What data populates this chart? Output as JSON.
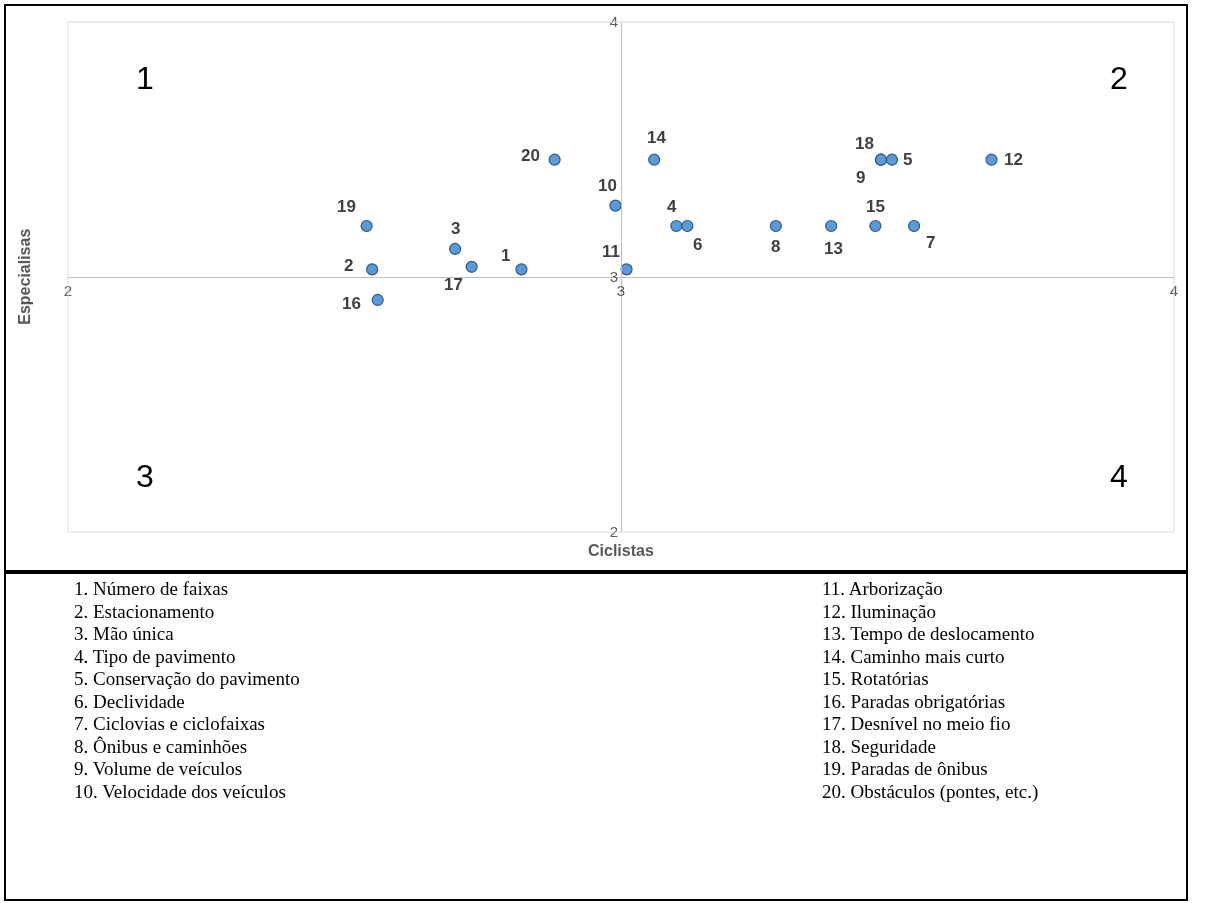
{
  "chart_data": {
    "type": "scatter",
    "xlabel": "Ciclistas",
    "ylabel": "Especialisas",
    "color": "#5b9bd5",
    "marker": "circle",
    "x": [
      2.82,
      2.55,
      2.7,
      3.1,
      3.49,
      3.12,
      3.53,
      3.28,
      3.47,
      2.99,
      3.01,
      3.67,
      3.38,
      3.06,
      3.46,
      2.56,
      2.73,
      3.47,
      2.54,
      2.88
    ],
    "values": [
      3.03,
      3.03,
      3.11,
      3.2,
      3.46,
      3.2,
      3.2,
      3.2,
      3.46,
      3.28,
      3.03,
      3.46,
      3.2,
      3.46,
      3.2,
      2.91,
      3.04,
      3.46,
      3.2,
      3.46
    ],
    "xlim": [
      2,
      4
    ],
    "ylim": [
      2,
      4
    ],
    "xticks": [
      2,
      3,
      4
    ],
    "yticks": [
      2,
      3,
      4
    ],
    "annotations": [
      "1",
      "2",
      "3",
      "4",
      {
        "text": "1",
        "x": 2.82,
        "y": 3.03
      },
      {
        "text": "2",
        "x": 2.55,
        "y": 3.03
      },
      {
        "text": "3",
        "x": 2.7,
        "y": 3.11
      },
      {
        "text": "4",
        "x": 3.1,
        "y": 3.2
      },
      {
        "text": "5",
        "x": 3.49,
        "y": 3.46
      },
      {
        "text": "6",
        "x": 3.12,
        "y": 3.2
      },
      {
        "text": "7",
        "x": 3.53,
        "y": 3.2
      },
      {
        "text": "8",
        "x": 3.28,
        "y": 3.2
      },
      {
        "text": "9",
        "x": 3.47,
        "y": 3.46
      },
      {
        "text": "10",
        "x": 2.99,
        "y": 3.28
      },
      {
        "text": "11",
        "x": 3.01,
        "y": 3.03
      },
      {
        "text": "12",
        "x": 3.67,
        "y": 3.46
      },
      {
        "text": "13",
        "x": 3.38,
        "y": 3.2
      },
      {
        "text": "14",
        "x": 3.06,
        "y": 3.46
      },
      {
        "text": "15",
        "x": 3.46,
        "y": 3.2
      },
      {
        "text": "16",
        "x": 2.56,
        "y": 2.91
      },
      {
        "text": "17",
        "x": 2.73,
        "y": 3.04
      },
      {
        "text": "18",
        "x": 3.47,
        "y": 3.46
      },
      {
        "text": "19",
        "x": 2.54,
        "y": 3.2
      },
      {
        "text": "20",
        "x": 2.88,
        "y": 3.46
      },
      "1. Número de faixas",
      "2. Estacionamento",
      "3. Mão única",
      "4. Tipo de pavimento",
      "5. Conservação do pavimento",
      "6. Declividade",
      "7. Ciclovias e ciclofaixas",
      "8. Ônibus e caminhões",
      "9. Volume de veículos",
      "10. Velocidade dos veículos",
      "11. Arborização",
      "12. Iluminação",
      "13. Tempo de deslocamento",
      "14. Caminho mais curto",
      "15. Rotatórias",
      "16. Paradas obrigatórias",
      "17. Desnível no meio fio",
      "18. Seguridade",
      "19. Paradas de ônibus",
      "20. Obstáculos (pontes, etc.)"
    ]
  }
}
